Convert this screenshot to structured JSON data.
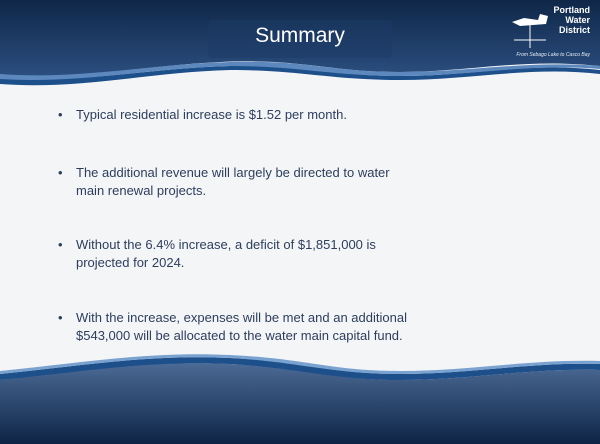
{
  "header": {
    "title": "Summary",
    "logo": {
      "lines": [
        "Portland",
        "Water",
        "District"
      ],
      "tagline": "From Sebago Lake to Casco Bay"
    }
  },
  "bullets": [
    [
      "Typical residential increase is $1.52 per month."
    ],
    [
      "The additional revenue will largely be directed to water",
      "main renewal projects."
    ],
    [
      "Without the 6.4% increase, a deficit of $1,851,000 is",
      "projected for 2024."
    ],
    [
      "With the increase, expenses will be met and an additional",
      "$543,000 will be allocated to the water main capital fund."
    ]
  ]
}
